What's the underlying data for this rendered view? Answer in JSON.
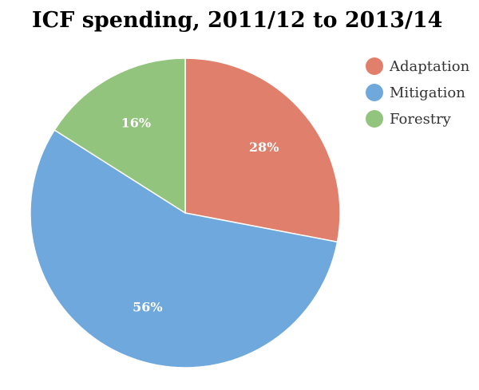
{
  "chart_data": {
    "type": "pie",
    "title": "ICF spending, 2011/12 to 2013/14",
    "categories": [
      "Adaptation",
      "Mitigation",
      "Forestry"
    ],
    "values": [
      28,
      56,
      16
    ],
    "data_labels": [
      "28%",
      "56%",
      "16%"
    ],
    "colors": [
      "#E07F6B",
      "#6FA8DC",
      "#93C47D"
    ],
    "legend_position": "top-right",
    "start_angle": "12 o'clock",
    "direction": "clockwise"
  }
}
